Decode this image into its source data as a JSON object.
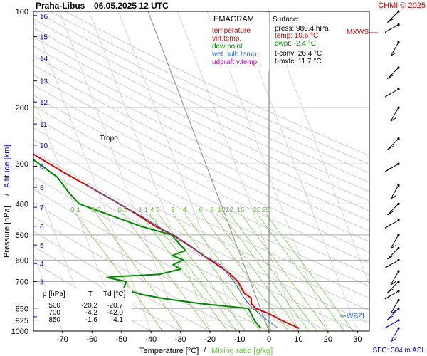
{
  "header": {
    "station": "Praha-Libus",
    "datetime": "06.05.2025 12 UTC",
    "copyright": "CHMI © 2025"
  },
  "legend": {
    "title": "EMAGRAM",
    "items": [
      {
        "label": "temperature",
        "color": "#dd0000"
      },
      {
        "label": "virt.temp.",
        "color": "#dd0000"
      },
      {
        "label": "dew point",
        "color": "#008800"
      },
      {
        "label": "wet bulb temp.",
        "color": "#3366cc"
      },
      {
        "label": "udpraft v.temp.",
        "color": "#cc00cc"
      }
    ]
  },
  "surface": {
    "title": "Surface:",
    "press": "press: 980.4 hPa",
    "temp": "temp: 10.6 °C",
    "dwpt": "dwpt: -2.4 °C",
    "tconv": "t-conv: 26.4 °C",
    "tmxfc": "t-mxfc: 11.7 °C"
  },
  "table": {
    "header": [
      "p [hPa]",
      "T",
      "Td [°C]"
    ],
    "rows": [
      [
        "500",
        "-20.2",
        "-20.7"
      ],
      [
        "700",
        "-4.2",
        "-42.0"
      ],
      [
        "850",
        "-1.6",
        "-4.1"
      ]
    ]
  },
  "labels": {
    "tropo": "Tropo",
    "mxws": "MXWS",
    "wbzl": "WBZL",
    "sfc": "SFC: 304 m ASL",
    "xlabel_temp": "Temperature [°C]",
    "xlabel_sep": "/",
    "xlabel_mix": "Mixing ratio [g/kg]",
    "ylabel_press": "Pressure [hPa]",
    "ylabel_sep": "/",
    "ylabel_alt": "Altitude [km]"
  },
  "colors": {
    "temperature": "#dd0000",
    "dewpoint": "#008800",
    "wetbulb": "#3366cc",
    "mixing": "#66cc33",
    "altitude": "#0000cc",
    "mxws": "#dd0000"
  },
  "chart_data": {
    "type": "line",
    "yscale": "log",
    "xlim": [
      -80,
      35
    ],
    "ylim": [
      1000,
      100
    ],
    "x_ticks": [
      -70,
      -60,
      -50,
      -40,
      -30,
      -20,
      -10,
      0,
      10,
      20,
      30
    ],
    "p_ticks": [
      100,
      200,
      300,
      400,
      500,
      600,
      700,
      850,
      925,
      1000
    ],
    "alt_ticks_km": [
      1,
      2,
      3,
      4,
      5,
      6,
      7,
      8,
      9,
      10,
      11,
      12,
      13,
      14,
      15,
      16
    ],
    "alt_tick_p": [
      902,
      800,
      700,
      615,
      538,
      470,
      410,
      355,
      305,
      262,
      225,
      192,
      165,
      140,
      120,
      103
    ],
    "mixing_ratio_labels": [
      "0.1",
      "0.2",
      "0.5",
      "1",
      "1.4",
      "2",
      "3",
      "4",
      "6",
      "8",
      "10",
      "12",
      "15",
      "20",
      "25"
    ],
    "mixing_ratio_label_temp": [
      -50,
      -43,
      -34,
      -28,
      -25,
      -22,
      -17,
      -13,
      -7.5,
      -3.7,
      -0.5,
      2.2,
      6,
      11.5,
      14.5
    ],
    "mixing_ratio_label_p": 416,
    "series": [
      {
        "name": "temperature",
        "points": [
          [
            10.6,
            980
          ],
          [
            6,
            930
          ],
          [
            2,
            880
          ],
          [
            -1.6,
            850
          ],
          [
            -2.5,
            820
          ],
          [
            -1.8,
            790
          ],
          [
            -3.5,
            760
          ],
          [
            -4.2,
            700
          ],
          [
            -6,
            660
          ],
          [
            -9,
            620
          ],
          [
            -13,
            575
          ],
          [
            -16,
            540
          ],
          [
            -20.2,
            500
          ],
          [
            -25,
            470
          ],
          [
            -30,
            430
          ],
          [
            -36,
            390
          ],
          [
            -43,
            350
          ],
          [
            -49,
            320
          ],
          [
            -55,
            290
          ],
          [
            -61,
            262
          ],
          [
            -60,
            250
          ],
          [
            -57,
            220
          ],
          [
            -55,
            200
          ],
          [
            -53,
            180
          ],
          [
            -54,
            160
          ],
          [
            -53,
            140
          ],
          [
            -54,
            120
          ],
          [
            -53,
            100
          ]
        ]
      },
      {
        "name": "dew point",
        "points": [
          [
            -2.4,
            980
          ],
          [
            -3.5,
            930
          ],
          [
            -4.1,
            850
          ],
          [
            -20,
            820
          ],
          [
            -28,
            800
          ],
          [
            -32,
            790
          ],
          [
            -38,
            770
          ],
          [
            -44,
            740
          ],
          [
            -42,
            700
          ],
          [
            -48,
            680
          ],
          [
            -45,
            675
          ],
          [
            -30,
            665
          ],
          [
            -22,
            640
          ],
          [
            -24,
            620
          ],
          [
            -20,
            600
          ],
          [
            -23,
            580
          ],
          [
            -18,
            560
          ],
          [
            -20.7,
            500
          ],
          [
            -30,
            470
          ],
          [
            -40,
            430
          ],
          [
            -48,
            400
          ],
          [
            -50,
            370
          ],
          [
            -52,
            330
          ],
          [
            -58,
            290
          ],
          [
            -62,
            265
          ],
          [
            -68,
            245
          ],
          [
            -75,
            235
          ],
          [
            -78,
            225
          ]
        ]
      },
      {
        "name": "wet bulb temp.",
        "points": [
          [
            3.5,
            980
          ],
          [
            1,
            930
          ],
          [
            -2.5,
            850
          ],
          [
            -4,
            800
          ],
          [
            -5.5,
            700
          ],
          [
            -8,
            620
          ],
          [
            -13,
            575
          ],
          [
            -20.5,
            500
          ],
          [
            -28,
            440
          ],
          [
            -36,
            390
          ],
          [
            -43,
            350
          ]
        ]
      }
    ],
    "barb_levels_p": [
      980,
      925,
      850,
      800,
      750,
      700,
      650,
      600,
      550,
      500,
      450,
      400,
      350,
      300,
      250,
      200,
      175,
      150,
      125,
      110,
      100
    ]
  }
}
